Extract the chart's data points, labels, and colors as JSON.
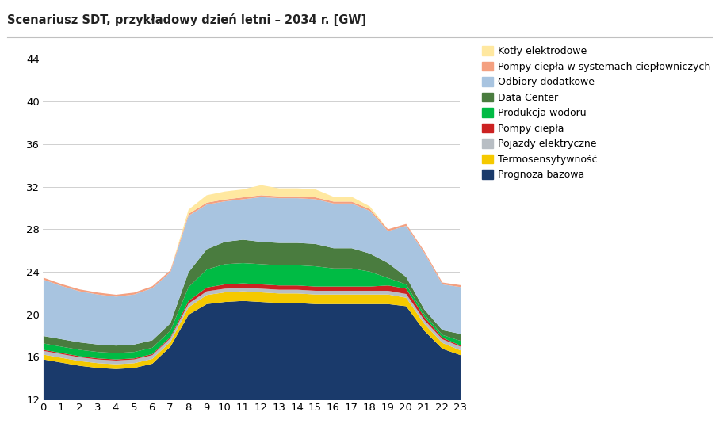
{
  "title": "Scenariusz SDT, przykładowy dzień letni – 2034 r. [GW]",
  "hours": [
    0,
    1,
    2,
    3,
    4,
    5,
    6,
    7,
    8,
    9,
    10,
    11,
    12,
    13,
    14,
    15,
    16,
    17,
    18,
    19,
    20,
    21,
    22,
    23
  ],
  "series": [
    {
      "label": "Prognoza bazowa",
      "color": "#1a3a6b",
      "values": [
        15.8,
        15.5,
        15.2,
        15.0,
        14.9,
        15.0,
        15.4,
        17.0,
        20.0,
        21.0,
        21.2,
        21.3,
        21.2,
        21.1,
        21.1,
        21.0,
        21.0,
        21.0,
        21.0,
        21.0,
        20.8,
        18.5,
        16.8,
        16.2
      ]
    },
    {
      "label": "Termosensytywność",
      "color": "#f5c900",
      "values": [
        0.45,
        0.45,
        0.45,
        0.45,
        0.45,
        0.45,
        0.45,
        0.45,
        0.7,
        0.85,
        0.9,
        0.9,
        0.9,
        0.9,
        0.9,
        0.9,
        0.9,
        0.9,
        0.9,
        0.9,
        0.8,
        0.65,
        0.55,
        0.45
      ]
    },
    {
      "label": "Pojazdy elektryczne",
      "color": "#b8bec4",
      "values": [
        0.35,
        0.35,
        0.35,
        0.35,
        0.35,
        0.35,
        0.35,
        0.35,
        0.35,
        0.35,
        0.35,
        0.35,
        0.35,
        0.35,
        0.35,
        0.35,
        0.35,
        0.35,
        0.35,
        0.35,
        0.35,
        0.35,
        0.35,
        0.35
      ]
    },
    {
      "label": "Pompy ciepła",
      "color": "#cc2222",
      "values": [
        0.1,
        0.1,
        0.1,
        0.1,
        0.1,
        0.1,
        0.1,
        0.1,
        0.25,
        0.35,
        0.4,
        0.4,
        0.4,
        0.4,
        0.4,
        0.4,
        0.4,
        0.4,
        0.4,
        0.5,
        0.5,
        0.3,
        0.15,
        0.1
      ]
    },
    {
      "label": "Produkcja wodoru",
      "color": "#00bb44",
      "values": [
        0.6,
        0.6,
        0.6,
        0.6,
        0.6,
        0.6,
        0.6,
        0.6,
        1.3,
        1.7,
        1.9,
        1.9,
        1.9,
        1.9,
        1.9,
        1.9,
        1.7,
        1.7,
        1.4,
        0.7,
        0.4,
        0.25,
        0.25,
        0.45
      ]
    },
    {
      "label": "Data Center",
      "color": "#4a7c3f",
      "values": [
        0.7,
        0.7,
        0.7,
        0.7,
        0.7,
        0.7,
        0.7,
        0.7,
        1.4,
        1.9,
        2.1,
        2.2,
        2.1,
        2.1,
        2.1,
        2.1,
        1.9,
        1.9,
        1.7,
        1.4,
        0.7,
        0.45,
        0.45,
        0.65
      ]
    },
    {
      "label": "Odbiory dodatkowe",
      "color": "#a8c4e0",
      "values": [
        5.3,
        5.0,
        4.8,
        4.7,
        4.6,
        4.7,
        4.9,
        4.8,
        5.3,
        4.2,
        3.8,
        3.8,
        4.2,
        4.2,
        4.2,
        4.2,
        4.2,
        4.2,
        4.0,
        3.0,
        4.8,
        5.3,
        4.3,
        4.4
      ]
    },
    {
      "label": "Pompy ciepła w systemach ciepłowniczych",
      "color": "#f4a080",
      "values": [
        0.18,
        0.18,
        0.18,
        0.18,
        0.18,
        0.18,
        0.18,
        0.18,
        0.18,
        0.18,
        0.18,
        0.18,
        0.18,
        0.18,
        0.18,
        0.18,
        0.18,
        0.18,
        0.18,
        0.18,
        0.18,
        0.18,
        0.18,
        0.18
      ]
    },
    {
      "label": "Kotły elektrodowe",
      "color": "#ffe8a0",
      "values": [
        0.0,
        0.0,
        0.0,
        0.0,
        0.0,
        0.0,
        0.0,
        0.0,
        0.4,
        0.7,
        0.75,
        0.75,
        0.95,
        0.75,
        0.75,
        0.75,
        0.45,
        0.45,
        0.25,
        0.0,
        0.0,
        0.0,
        0.0,
        0.0
      ]
    }
  ],
  "ylim": [
    12,
    45
  ],
  "yticks": [
    12,
    16,
    20,
    24,
    28,
    32,
    36,
    40,
    44
  ],
  "background_color": "#ffffff",
  "title_fontsize": 10.5,
  "axis_fontsize": 9.5,
  "legend_fontsize": 9,
  "fig_width": 9.07,
  "fig_height": 5.54,
  "dpi": 100
}
